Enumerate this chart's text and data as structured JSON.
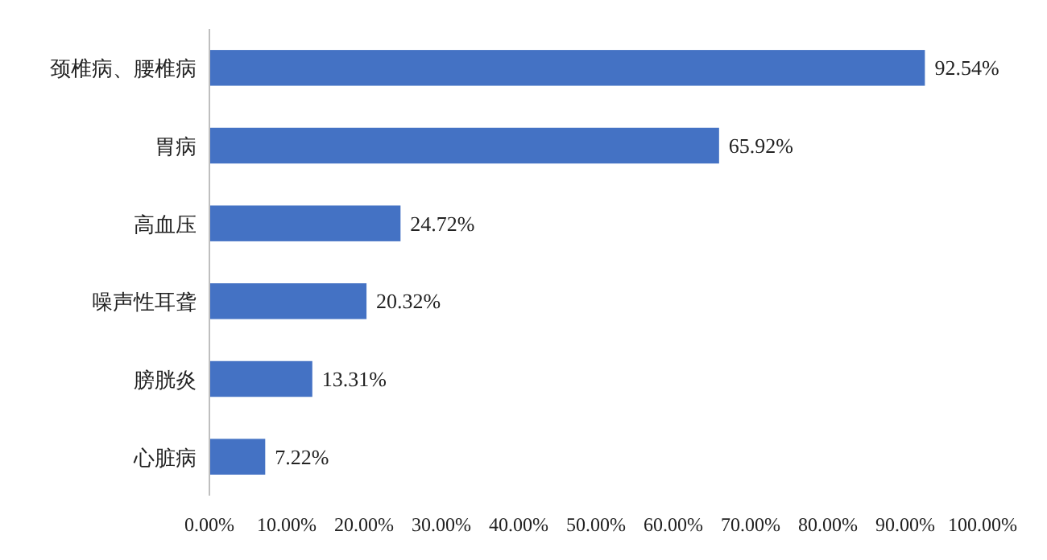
{
  "chart_data": {
    "type": "bar",
    "orientation": "horizontal",
    "categories": [
      "颈椎病、腰椎病",
      "胃病",
      "高血压",
      "噪声性耳聋",
      "膀胱炎",
      "心脏病"
    ],
    "values": [
      92.54,
      65.92,
      24.72,
      20.32,
      13.31,
      7.22
    ],
    "value_labels": [
      "92.54%",
      "65.92%",
      "24.72%",
      "20.32%",
      "13.31%",
      "7.22%"
    ],
    "color": "#4472c4",
    "xlim": [
      0,
      100
    ],
    "xticks": [
      {
        "value": 0,
        "label": "0.00%"
      },
      {
        "value": 10,
        "label": "10.00%"
      },
      {
        "value": 20,
        "label": "20.00%"
      },
      {
        "value": 30,
        "label": "30.00%"
      },
      {
        "value": 40,
        "label": "40.00%"
      },
      {
        "value": 50,
        "label": "50.00%"
      },
      {
        "value": 60,
        "label": "60.00%"
      },
      {
        "value": 70,
        "label": "70.00%"
      },
      {
        "value": 80,
        "label": "80.00%"
      },
      {
        "value": 90,
        "label": "90.00%"
      },
      {
        "value": 100,
        "label": "100.00%"
      }
    ]
  }
}
